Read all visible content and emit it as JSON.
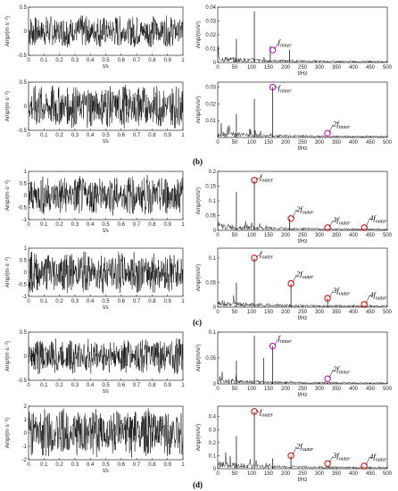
{
  "chart_data": [
    {
      "panel": 1,
      "type": "line",
      "kind": "time",
      "xlabel": "t/s",
      "ylabel": "Amp/(m·s⁻²)",
      "xlim": [
        0,
        1
      ],
      "ylim": [
        -0.5,
        0.5
      ],
      "amplitude": 0.34,
      "xticks": [
        "0",
        "0.1",
        "0.2",
        "0.3",
        "0.4",
        "0.5",
        "0.6",
        "0.7",
        "0.8",
        "0.9",
        "1"
      ],
      "yticks": [
        "-0.5",
        "0",
        "0.5"
      ]
    },
    {
      "panel": 2,
      "type": "line",
      "kind": "spectrum",
      "xlabel": "f/Hz",
      "ylabel": "Amp/(m/s²)",
      "xlim": [
        0,
        500
      ],
      "ylim": [
        0,
        0.04
      ],
      "xticks": [
        "0",
        "50",
        "100",
        "150",
        "200",
        "250",
        "300",
        "350",
        "400",
        "450",
        "500"
      ],
      "yticks": [
        "0",
        "0.01",
        "0.02",
        "0.03",
        "0.04"
      ],
      "peaks": [
        [
          108,
          0.037
        ],
        [
          55,
          0.017
        ],
        [
          155,
          0.012
        ],
        [
          212,
          0.009
        ]
      ],
      "annotations": [
        {
          "x": 162,
          "y": 0.009,
          "color": "#c800c8",
          "text": "f",
          "sub": "inner"
        }
      ]
    },
    {
      "panel": 3,
      "type": "line",
      "kind": "time",
      "xlabel": "t/s",
      "ylabel": "Amp/(m·s⁻²)",
      "xlim": [
        0,
        1
      ],
      "ylim": [
        -0.5,
        0.5
      ],
      "amplitude": 0.46,
      "xticks": [
        "0",
        "0.1",
        "0.2",
        "0.3",
        "0.4",
        "0.5",
        "0.6",
        "0.7",
        "0.8",
        "0.9",
        "1"
      ],
      "yticks": [
        "-0.5",
        "0",
        "0.5"
      ]
    },
    {
      "panel": 4,
      "type": "line",
      "kind": "spectrum",
      "xlabel": "f/Hz",
      "ylabel": "Amp/(m/s²)",
      "xlim": [
        0,
        500
      ],
      "ylim": [
        0,
        0.033
      ],
      "xticks": [
        "0",
        "50",
        "100",
        "150",
        "200",
        "250",
        "300",
        "350",
        "400",
        "450",
        "500"
      ],
      "yticks": [
        "0.01",
        "0.02",
        "0.03"
      ],
      "peaks": [
        [
          162,
          0.03
        ],
        [
          108,
          0.023
        ],
        [
          55,
          0.014
        ]
      ],
      "annotations": [
        {
          "x": 162,
          "y": 0.03,
          "color": "#c800c8",
          "text": "f",
          "sub": "inner"
        },
        {
          "x": 324,
          "y": 0.0025,
          "color": "#c800c8",
          "text": "2f",
          "sub": "inner"
        }
      ]
    },
    {
      "panel": 5,
      "type": "line",
      "kind": "time",
      "xlabel": "t/s",
      "ylabel": "Amp/(m·s⁻²)",
      "xlim": [
        0,
        1
      ],
      "ylim": [
        -1,
        1
      ],
      "amplitude": 0.85,
      "xticks": [
        "0",
        "0.1",
        "0.2",
        "0.3",
        "0.4",
        "0.5",
        "0.6",
        "0.7",
        "0.8",
        "0.9",
        "1"
      ],
      "yticks": [
        "-1",
        "-0.5",
        "0",
        "0.5",
        "1"
      ]
    },
    {
      "panel": 6,
      "type": "line",
      "kind": "spectrum",
      "xlabel": "f/Hz",
      "ylabel": "Amp/(m/s²)",
      "xlim": [
        0,
        500
      ],
      "ylim": [
        0,
        0.2
      ],
      "xticks": [
        "0",
        "50",
        "100",
        "150",
        "200",
        "250",
        "300",
        "350",
        "400",
        "450",
        "500"
      ],
      "yticks": [
        "0",
        "0.05",
        "0.1",
        "0.15",
        "0.2"
      ],
      "peaks": [
        [
          108,
          0.17
        ],
        [
          55,
          0.13
        ],
        [
          212,
          0.04
        ]
      ],
      "annotations": [
        {
          "x": 108,
          "y": 0.17,
          "color": "#d40000",
          "text": "f",
          "sub": "outer"
        },
        {
          "x": 216,
          "y": 0.04,
          "color": "#d40000",
          "text": "2f",
          "sub": "outer"
        },
        {
          "x": 324,
          "y": 0.004,
          "color": "#d40000",
          "text": "3f",
          "sub": "outer"
        },
        {
          "x": 432,
          "y": 0.004,
          "color": "#d40000",
          "text": "4f",
          "sub": "outer"
        }
      ]
    },
    {
      "panel": 7,
      "type": "line",
      "kind": "time",
      "xlabel": "t/s",
      "ylabel": "Amp/(m·s⁻²)",
      "xlim": [
        0,
        1
      ],
      "ylim": [
        -1,
        1
      ],
      "amplitude": 0.88,
      "xticks": [
        "0",
        "0.1",
        "0.2",
        "0.3",
        "0.4",
        "0.5",
        "0.6",
        "0.7",
        "0.8",
        "0.9",
        "1"
      ],
      "yticks": [
        "-1",
        "-0.5",
        "0",
        "0.5",
        "1"
      ]
    },
    {
      "panel": 8,
      "type": "line",
      "kind": "spectrum",
      "xlabel": "f/Hz",
      "ylabel": "Amp/(m/s²)",
      "xlim": [
        0,
        500
      ],
      "ylim": [
        0,
        0.12
      ],
      "xticks": [
        "0",
        "50",
        "100",
        "150",
        "200",
        "250",
        "300",
        "350",
        "400",
        "450",
        "500"
      ],
      "yticks": [
        "0",
        "0.05",
        "0.1"
      ],
      "peaks": [
        [
          108,
          0.1
        ],
        [
          55,
          0.05
        ],
        [
          216,
          0.048
        ],
        [
          324,
          0.018
        ]
      ],
      "annotations": [
        {
          "x": 108,
          "y": 0.1,
          "color": "#d40000",
          "text": "f",
          "sub": "outer"
        },
        {
          "x": 216,
          "y": 0.048,
          "color": "#d40000",
          "text": "2f",
          "sub": "outer"
        },
        {
          "x": 324,
          "y": 0.018,
          "color": "#d40000",
          "text": "3f",
          "sub": "outer"
        },
        {
          "x": 432,
          "y": 0.004,
          "color": "#d40000",
          "text": "4f",
          "sub": "outer"
        }
      ]
    },
    {
      "panel": 9,
      "type": "line",
      "kind": "time",
      "xlabel": "t/s",
      "ylabel": "Amp/(m·s⁻²)",
      "xlim": [
        0,
        1
      ],
      "ylim": [
        -0.5,
        0.5
      ],
      "amplitude": 0.38,
      "xticks": [
        "0",
        "0.1",
        "0.2",
        "0.3",
        "0.4",
        "0.5",
        "0.6",
        "0.7",
        "0.8",
        "0.9",
        "1"
      ],
      "yticks": [
        "-0.5",
        "0",
        "0.5"
      ]
    },
    {
      "panel": 10,
      "type": "line",
      "kind": "spectrum",
      "xlabel": "f/Hz",
      "ylabel": "Amp/(m/s²)",
      "xlim": [
        0,
        500
      ],
      "ylim": [
        0,
        0.1
      ],
      "xticks": [
        "0",
        "50",
        "100",
        "150",
        "200",
        "250",
        "300",
        "350",
        "400",
        "450",
        "500"
      ],
      "yticks": [
        "0",
        "0.05",
        "0.1"
      ],
      "peaks": [
        [
          108,
          0.093
        ],
        [
          162,
          0.073
        ],
        [
          55,
          0.045
        ],
        [
          135,
          0.05
        ]
      ],
      "annotations": [
        {
          "x": 162,
          "y": 0.073,
          "color": "#c800c8",
          "text": "f",
          "sub": "inner"
        },
        {
          "x": 324,
          "y": 0.01,
          "color": "#c800c8",
          "text": "2f",
          "sub": "inner"
        }
      ]
    },
    {
      "panel": 11,
      "type": "line",
      "kind": "time",
      "xlabel": "t/s",
      "ylabel": "Amp/(m·s⁻²)",
      "xlim": [
        0,
        1
      ],
      "ylim": [
        -2,
        2
      ],
      "amplitude": 1.85,
      "xticks": [
        "0",
        "0.1",
        "0.2",
        "0.3",
        "0.4",
        "0.5",
        "0.6",
        "0.7",
        "0.8",
        "0.9",
        "1"
      ],
      "yticks": [
        "-2",
        "-1",
        "0",
        "1",
        "2"
      ]
    },
    {
      "panel": 12,
      "type": "line",
      "kind": "spectrum",
      "xlabel": "f/Hz",
      "ylabel": "Amp/(m/s²)",
      "xlim": [
        0,
        500
      ],
      "ylim": [
        0,
        0.48
      ],
      "xticks": [
        "0",
        "50",
        "100",
        "150",
        "200",
        "250",
        "300",
        "350",
        "400",
        "450",
        "500"
      ],
      "yticks": [
        "0",
        "0.1",
        "0.2",
        "0.3",
        "0.4"
      ],
      "peaks": [
        [
          108,
          0.44
        ],
        [
          55,
          0.25
        ],
        [
          216,
          0.1
        ],
        [
          162,
          0.08
        ]
      ],
      "annotations": [
        {
          "x": 108,
          "y": 0.44,
          "color": "#d40000",
          "text": "f",
          "sub": "outer"
        },
        {
          "x": 216,
          "y": 0.1,
          "color": "#d40000",
          "text": "2f",
          "sub": "outer"
        },
        {
          "x": 324,
          "y": 0.04,
          "color": "#d40000",
          "text": "3f",
          "sub": "outer"
        },
        {
          "x": 432,
          "y": 0.02,
          "color": "#d40000",
          "text": "4f",
          "sub": "outer"
        }
      ]
    }
  ],
  "panel_labels": [
    "(b)",
    "(c)",
    "(d)"
  ]
}
